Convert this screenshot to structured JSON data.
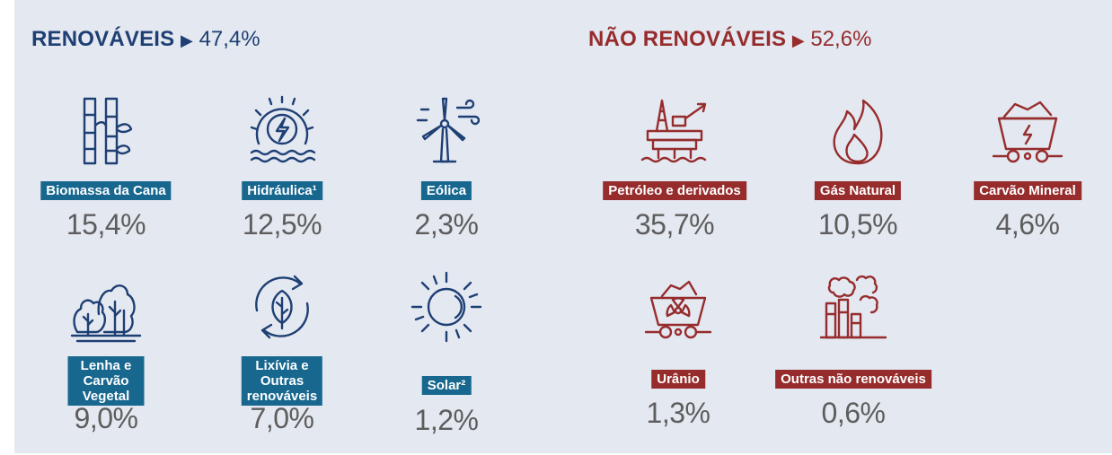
{
  "renovaveis": {
    "title": "RENOVÁVEIS",
    "arrow": "▶",
    "total": "47,4%",
    "color": "#1e3f74",
    "label_color": "#17678f",
    "items": [
      {
        "icon": "sugarcane-icon",
        "label": "Biomassa da Cana",
        "value": "15,4%"
      },
      {
        "icon": "hydro-wheel-icon",
        "label": "Hidráulica¹",
        "value": "12,5%"
      },
      {
        "icon": "wind-turbine-icon",
        "label": "Eólica",
        "value": "2,3%"
      },
      {
        "icon": "trees-icon",
        "label_line1": "Lenha e",
        "label_line2": "Carvão Vegetal",
        "value": "9,0%"
      },
      {
        "icon": "recycle-leaf-icon",
        "label_line1": "Lixívia e",
        "label_line2": "Outras renováveis",
        "value": "7,0%"
      },
      {
        "icon": "sun-icon",
        "label": "Solar²",
        "value": "1,2%"
      }
    ]
  },
  "nao_renovaveis": {
    "title": "NÃO RENOVÁVEIS",
    "arrow": "▶",
    "total": "52,6%",
    "color": "#962c2c",
    "items": [
      {
        "icon": "oil-rig-icon",
        "label": "Petróleo e derivados",
        "value": "35,7%"
      },
      {
        "icon": "flame-icon",
        "label": "Gás Natural",
        "value": "10,5%"
      },
      {
        "icon": "coal-cart-icon",
        "label": "Carvão Mineral",
        "value": "4,6%"
      },
      {
        "icon": "uranium-cart-icon",
        "label": "Urânio",
        "value": "1,3%"
      },
      {
        "icon": "factory-smoke-icon",
        "label": "Outras não renováveis",
        "value": "0,6%"
      }
    ]
  }
}
